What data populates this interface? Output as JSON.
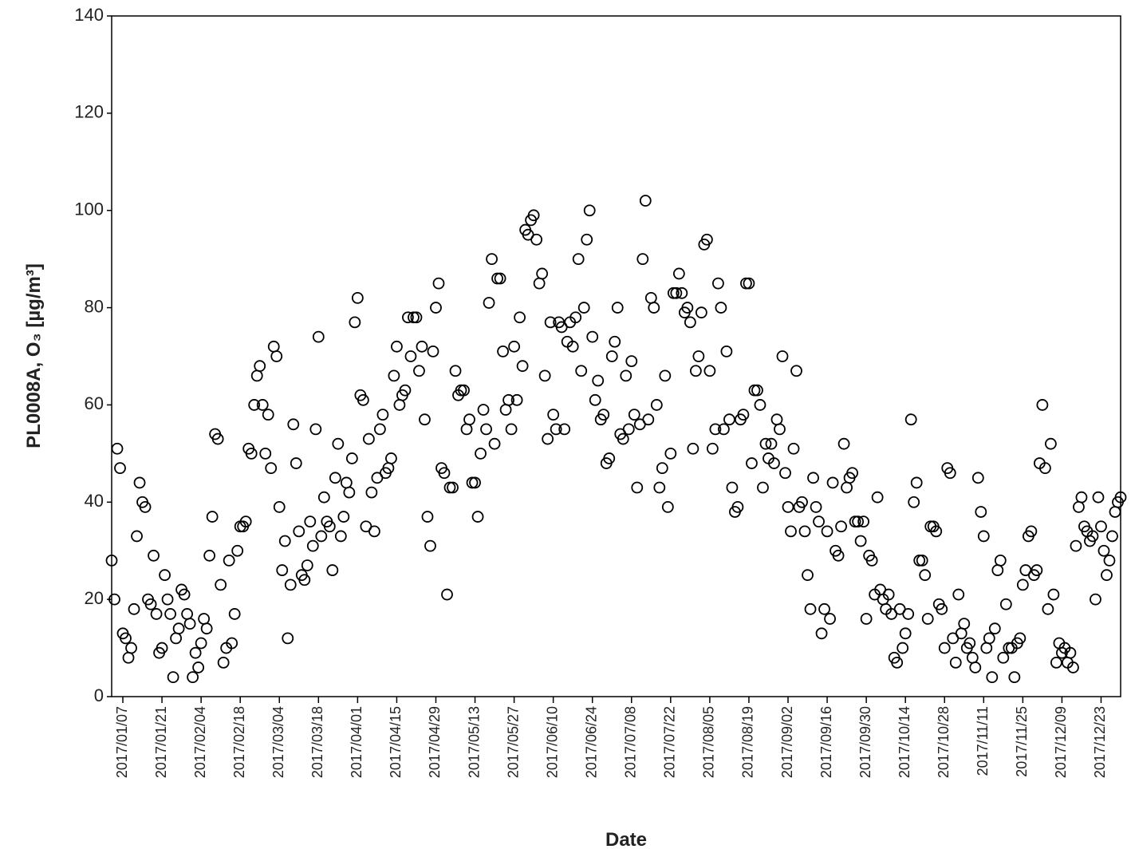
{
  "chart_data": {
    "type": "scatter",
    "x_label": "Date",
    "y_label": "PL0008A, O₃ [µg/m³]",
    "xlim": [
      3,
      364
    ],
    "ylim": [
      0,
      140
    ],
    "yticks": [
      0,
      20,
      40,
      60,
      80,
      100,
      120,
      140
    ],
    "xticks": [
      {
        "value": 7,
        "label": "2017/01/07"
      },
      {
        "value": 21,
        "label": "2017/01/21"
      },
      {
        "value": 35,
        "label": "2017/02/04"
      },
      {
        "value": 49,
        "label": "2017/02/18"
      },
      {
        "value": 63,
        "label": "2017/03/04"
      },
      {
        "value": 77,
        "label": "2017/03/18"
      },
      {
        "value": 91,
        "label": "2017/04/01"
      },
      {
        "value": 105,
        "label": "2017/04/15"
      },
      {
        "value": 119,
        "label": "2017/04/29"
      },
      {
        "value": 133,
        "label": "2017/05/13"
      },
      {
        "value": 147,
        "label": "2017/05/27"
      },
      {
        "value": 161,
        "label": "2017/06/10"
      },
      {
        "value": 175,
        "label": "2017/06/24"
      },
      {
        "value": 189,
        "label": "2017/07/08"
      },
      {
        "value": 203,
        "label": "2017/07/22"
      },
      {
        "value": 217,
        "label": "2017/08/05"
      },
      {
        "value": 231,
        "label": "2017/08/19"
      },
      {
        "value": 245,
        "label": "2017/09/02"
      },
      {
        "value": 259,
        "label": "2017/09/16"
      },
      {
        "value": 273,
        "label": "2017/09/30"
      },
      {
        "value": 287,
        "label": "2017/10/14"
      },
      {
        "value": 301,
        "label": "2017/10/28"
      },
      {
        "value": 315,
        "label": "2017/11/11"
      },
      {
        "value": 329,
        "label": "2017/11/25"
      },
      {
        "value": 343,
        "label": "2017/12/09"
      },
      {
        "value": 357,
        "label": "2017/12/23"
      }
    ],
    "color": "#000000",
    "x": [
      3,
      4,
      5,
      6,
      7,
      8,
      9,
      10,
      11,
      12,
      13,
      14,
      15,
      16,
      17,
      18,
      19,
      20,
      21,
      22,
      23,
      24,
      25,
      26,
      27,
      28,
      29,
      30,
      31,
      32,
      33,
      34,
      35,
      36,
      37,
      38,
      39,
      40,
      41,
      42,
      43,
      44,
      45,
      46,
      47,
      48,
      49,
      50,
      51,
      52,
      53,
      54,
      55,
      56,
      57,
      58,
      59,
      60,
      61,
      62,
      63,
      64,
      65,
      66,
      67,
      68,
      69,
      70,
      71,
      72,
      73,
      74,
      75,
      76,
      77,
      78,
      79,
      80,
      81,
      82,
      83,
      84,
      85,
      86,
      87,
      88,
      89,
      90,
      91,
      92,
      93,
      94,
      95,
      96,
      97,
      98,
      99,
      100,
      101,
      102,
      103,
      104,
      105,
      106,
      107,
      108,
      109,
      110,
      111,
      112,
      113,
      114,
      115,
      116,
      117,
      118,
      119,
      120,
      121,
      122,
      123,
      124,
      125,
      126,
      127,
      128,
      129,
      130,
      131,
      132,
      133,
      134,
      135,
      136,
      137,
      138,
      139,
      140,
      141,
      142,
      143,
      144,
      145,
      146,
      147,
      148,
      149,
      150,
      151,
      152,
      153,
      154,
      155,
      156,
      157,
      158,
      159,
      160,
      161,
      162,
      163,
      164,
      165,
      166,
      167,
      168,
      169,
      170,
      171,
      172,
      173,
      174,
      175,
      176,
      177,
      178,
      179,
      180,
      181,
      182,
      183,
      184,
      185,
      186,
      187,
      188,
      189,
      190,
      191,
      192,
      193,
      194,
      195,
      196,
      197,
      198,
      199,
      200,
      201,
      202,
      203,
      204,
      205,
      206,
      207,
      208,
      209,
      210,
      211,
      212,
      213,
      214,
      215,
      216,
      217,
      218,
      219,
      220,
      221,
      222,
      223,
      224,
      225,
      226,
      227,
      228,
      229,
      230,
      231,
      232,
      233,
      234,
      235,
      236,
      237,
      238,
      239,
      240,
      241,
      242,
      243,
      244,
      245,
      246,
      247,
      248,
      249,
      250,
      251,
      252,
      253,
      254,
      255,
      256,
      257,
      258,
      259,
      260,
      261,
      262,
      263,
      264,
      265,
      266,
      267,
      268,
      269,
      270,
      271,
      272,
      273,
      274,
      275,
      276,
      277,
      278,
      279,
      280,
      281,
      282,
      283,
      284,
      285,
      286,
      287,
      288,
      289,
      290,
      291,
      292,
      293,
      294,
      295,
      296,
      297,
      298,
      299,
      300,
      301,
      302,
      303,
      304,
      305,
      306,
      307,
      308,
      309,
      310,
      311,
      312,
      313,
      314,
      315,
      316,
      317,
      318,
      319,
      320,
      321,
      322,
      323,
      324,
      325,
      326,
      327,
      328,
      329,
      330,
      331,
      332,
      333,
      334,
      335,
      336,
      337,
      338,
      339,
      340,
      341,
      342,
      343,
      344,
      345,
      346,
      347,
      348,
      349,
      350,
      351,
      352,
      353,
      354,
      355,
      356,
      357,
      358,
      359,
      360,
      361,
      362,
      363,
      364
    ],
    "values": [
      28,
      20,
      51,
      47,
      13,
      12,
      8,
      10,
      18,
      33,
      44,
      40,
      39,
      20,
      19,
      29,
      17,
      9,
      10,
      25,
      20,
      17,
      4,
      12,
      14,
      22,
      21,
      17,
      15,
      4,
      9,
      6,
      11,
      16,
      14,
      29,
      37,
      54,
      53,
      23,
      7,
      10,
      28,
      11,
      17,
      30,
      35,
      35,
      36,
      51,
      50,
      60,
      66,
      68,
      60,
      50,
      58,
      47,
      72,
      70,
      39,
      26,
      32,
      12,
      23,
      56,
      48,
      34,
      25,
      24,
      27,
      36,
      31,
      55,
      74,
      33,
      41,
      36,
      35,
      26,
      45,
      52,
      33,
      37,
      44,
      42,
      49,
      77,
      82,
      62,
      61,
      35,
      53,
      42,
      34,
      45,
      55,
      58,
      46,
      47,
      49,
      66,
      72,
      60,
      62,
      63,
      78,
      70,
      78,
      78,
      67,
      72,
      57,
      37,
      31,
      71,
      80,
      85,
      47,
      46,
      21,
      43,
      43,
      67,
      62,
      63,
      63,
      55,
      57,
      44,
      44,
      37,
      50,
      59,
      55,
      81,
      90,
      52,
      86,
      86,
      71,
      59,
      61,
      55,
      72,
      61,
      78,
      68,
      96,
      95,
      98,
      99,
      94,
      85,
      87,
      66,
      53,
      77,
      58,
      55,
      77,
      76,
      55,
      73,
      77,
      72,
      78,
      90,
      67,
      80,
      94,
      100,
      74,
      61,
      65,
      57,
      58,
      48,
      49,
      70,
      73,
      80,
      54,
      53,
      66,
      55,
      69,
      58,
      43,
      56,
      90,
      102,
      57,
      82,
      80,
      60,
      43,
      47,
      66,
      39,
      50,
      83,
      83,
      87,
      83,
      79,
      80,
      77,
      51,
      67,
      70,
      79,
      93,
      94,
      67,
      51,
      55,
      85,
      80,
      55,
      71,
      57,
      43,
      38,
      39,
      57,
      58,
      85,
      85,
      48,
      63,
      63,
      60,
      43,
      52,
      49,
      52,
      48,
      57,
      55,
      70,
      46,
      39,
      34,
      51,
      67,
      39,
      40,
      34,
      25,
      18,
      45,
      39,
      36,
      13,
      18,
      34,
      16,
      44,
      30,
      29,
      35,
      52,
      43,
      45,
      46,
      36,
      36,
      32,
      36,
      16,
      29,
      28,
      21,
      41,
      22,
      20,
      18,
      21,
      17,
      8,
      7,
      18,
      10,
      13,
      17,
      57,
      40,
      44,
      28,
      28,
      25,
      16,
      35,
      35,
      34,
      19,
      18,
      10,
      47,
      46,
      12,
      7,
      21,
      13,
      15,
      10,
      11,
      8,
      6,
      45,
      38,
      33,
      10,
      12,
      4,
      14,
      26,
      28,
      8,
      19,
      10,
      10,
      4,
      11,
      12,
      23,
      26,
      33,
      34,
      25,
      26,
      48,
      60,
      47,
      18,
      52,
      21,
      7,
      11,
      9,
      10,
      7,
      9,
      6,
      31,
      39,
      41,
      35,
      34,
      32,
      33,
      20,
      41,
      35,
      30,
      25,
      28,
      33,
      38,
      40,
      41
    ]
  }
}
